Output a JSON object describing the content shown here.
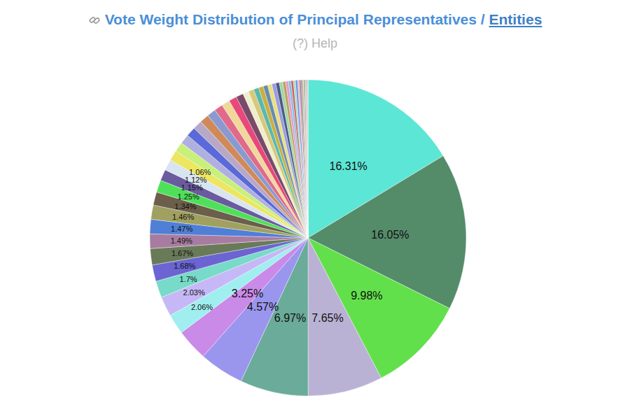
{
  "chart_data": {
    "type": "pie",
    "title": "Vote Weight Distribution of Principal Representatives / Entities",
    "title_link": "Entities",
    "subtitle": "(?) Help",
    "data_labels": true,
    "values": [
      16.31,
      16.05,
      9.98,
      7.65,
      6.97,
      4.57,
      3.25,
      2.06,
      2.03,
      1.7,
      1.68,
      1.67,
      1.49,
      1.47,
      1.46,
      1.34,
      1.25,
      1.15,
      1.12,
      1.06,
      0.99,
      0.98,
      0.97,
      0.95,
      0.93,
      0.9,
      0.88,
      0.85,
      0.8,
      0.75,
      0.6,
      0.56,
      0.52,
      0.49,
      0.46,
      0.43,
      0.4,
      0.37,
      0.34,
      0.31,
      0.28,
      0.26,
      0.24,
      0.22,
      0.2,
      0.18,
      0.16,
      0.14,
      0.12,
      0.1,
      0.09,
      0.08,
      0.07,
      0.06,
      0.05,
      0.01
    ],
    "value_labels": [
      "16.31%",
      "16.05%",
      "9.98%",
      "7.65%",
      "6.97%",
      "4.57%",
      "3.25%",
      "2.06%",
      "2.03%",
      "1.7%",
      "1.68%",
      "1.67%",
      "1.49%",
      "1.47%",
      "1.46%",
      "1.34%",
      "1.25%",
      "1.15%",
      "1.12%",
      "1.06%",
      null,
      null,
      null,
      null,
      null,
      null,
      null,
      null,
      null,
      null,
      null,
      null,
      null,
      null,
      null,
      null,
      null,
      null,
      null,
      null,
      null,
      null,
      null,
      null,
      null,
      null,
      null,
      null,
      null,
      null,
      null,
      null,
      null,
      null,
      null,
      null
    ],
    "colors": [
      "#5ce6d5",
      "#548c6a",
      "#62e04c",
      "#bab2d4",
      "#6aab9a",
      "#9a96ee",
      "#c98ae8",
      "#a0eef0",
      "#c6b8f6",
      "#78dac8",
      "#6b64d2",
      "#697a58",
      "#a87ca0",
      "#4f7fd6",
      "#a0a060",
      "#6b5e4a",
      "#4fe05a",
      "#6a5a9e",
      "#d8e4f0",
      "#ece660",
      "#c8f07a",
      "#b0b0e0",
      "#5a6ad8",
      "#b8a8c8",
      "#d08a5a",
      "#8a9ad0",
      "#e06a8a",
      "#f0d89a",
      "#e8487a",
      "#7a4a6a",
      "#eeeecc",
      "#d8c878",
      "#5ab8b0",
      "#c8b040",
      "#6a8ab0",
      "#e8e080",
      "#9a9adc",
      "#4a5a8a",
      "#a0d8a0",
      "#c0a060",
      "#e09ad0",
      "#80c0e0",
      "#d06060",
      "#a0e0c0",
      "#7080f0",
      "#e0c0a0",
      "#b060b0",
      "#60a060",
      "#f0a0a0",
      "#a0a0a0",
      "#5080a0",
      "#d0d050",
      "#e07040",
      "#8060c0",
      "#40c0a0",
      "#c04040"
    ]
  }
}
